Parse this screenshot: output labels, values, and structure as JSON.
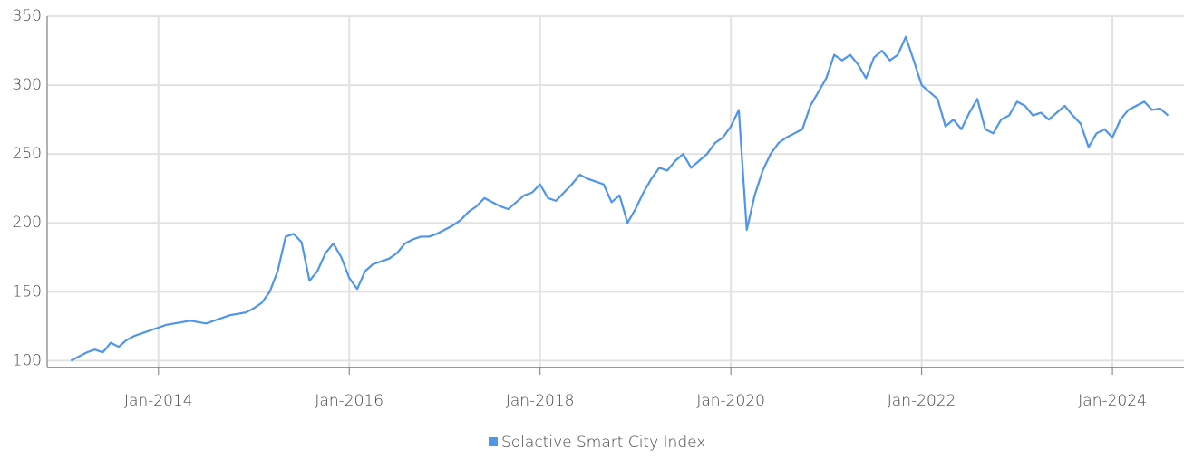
{
  "chart_data": {
    "type": "line",
    "x": [
      "2013-02",
      "2013-03",
      "2013-04",
      "2013-05",
      "2013-06",
      "2013-07",
      "2013-08",
      "2013-09",
      "2013-10",
      "2013-11",
      "2013-12",
      "2014-01",
      "2014-02",
      "2014-03",
      "2014-04",
      "2014-05",
      "2014-06",
      "2014-07",
      "2014-08",
      "2014-09",
      "2014-10",
      "2014-11",
      "2014-12",
      "2015-01",
      "2015-02",
      "2015-03",
      "2015-04",
      "2015-05",
      "2015-06",
      "2015-07",
      "2015-08",
      "2015-09",
      "2015-10",
      "2015-11",
      "2015-12",
      "2016-01",
      "2016-02",
      "2016-03",
      "2016-04",
      "2016-05",
      "2016-06",
      "2016-07",
      "2016-08",
      "2016-09",
      "2016-10",
      "2016-11",
      "2016-12",
      "2017-01",
      "2017-02",
      "2017-03",
      "2017-04",
      "2017-05",
      "2017-06",
      "2017-07",
      "2017-08",
      "2017-09",
      "2017-10",
      "2017-11",
      "2017-12",
      "2018-01",
      "2018-02",
      "2018-03",
      "2018-04",
      "2018-05",
      "2018-06",
      "2018-07",
      "2018-08",
      "2018-09",
      "2018-10",
      "2018-11",
      "2018-12",
      "2019-01",
      "2019-02",
      "2019-03",
      "2019-04",
      "2019-05",
      "2019-06",
      "2019-07",
      "2019-08",
      "2019-09",
      "2019-10",
      "2019-11",
      "2019-12",
      "2020-01",
      "2020-02",
      "2020-03",
      "2020-04",
      "2020-05",
      "2020-06",
      "2020-07",
      "2020-08",
      "2020-09",
      "2020-10",
      "2020-11",
      "2020-12",
      "2021-01",
      "2021-02",
      "2021-03",
      "2021-04",
      "2021-05",
      "2021-06",
      "2021-07",
      "2021-08",
      "2021-09",
      "2021-10",
      "2021-11",
      "2021-12",
      "2022-01",
      "2022-02",
      "2022-03",
      "2022-04",
      "2022-05",
      "2022-06",
      "2022-07",
      "2022-08",
      "2022-09",
      "2022-10",
      "2022-11",
      "2022-12",
      "2023-01",
      "2023-02",
      "2023-03",
      "2023-04",
      "2023-05",
      "2023-06",
      "2023-07",
      "2023-08",
      "2023-09",
      "2023-10",
      "2023-11",
      "2023-12",
      "2024-01",
      "2024-02",
      "2024-03",
      "2024-04",
      "2024-05",
      "2024-06",
      "2024-07",
      "2024-08"
    ],
    "series": [
      {
        "name": "Solactive Smart City Index",
        "color": "#4f95ec",
        "values": [
          100,
          103,
          106,
          108,
          106,
          113,
          110,
          115,
          118,
          120,
          122,
          124,
          126,
          127,
          128,
          129,
          128,
          127,
          129,
          131,
          133,
          134,
          135,
          138,
          142,
          150,
          165,
          190,
          192,
          186,
          158,
          165,
          178,
          185,
          175,
          160,
          152,
          165,
          170,
          172,
          174,
          178,
          185,
          188,
          190,
          190,
          192,
          195,
          198,
          202,
          208,
          212,
          218,
          215,
          212,
          210,
          215,
          220,
          222,
          228,
          218,
          216,
          222,
          228,
          235,
          232,
          230,
          228,
          215,
          220,
          200,
          210,
          222,
          232,
          240,
          238,
          245,
          250,
          240,
          245,
          250,
          258,
          262,
          270,
          282,
          195,
          220,
          238,
          250,
          258,
          262,
          265,
          268,
          285,
          295,
          305,
          322,
          318,
          322,
          315,
          305,
          320,
          325,
          318,
          322,
          335,
          318,
          300,
          295,
          290,
          270,
          275,
          268,
          280,
          290,
          268,
          265,
          275,
          278,
          288,
          285,
          278,
          280,
          275,
          280,
          285,
          278,
          272,
          255,
          265,
          268,
          262,
          275,
          282,
          285,
          288,
          282,
          283,
          278
        ]
      }
    ],
    "xlim": [
      "2012-11",
      "2024-10"
    ],
    "xticks": [
      {
        "value": "2014-01",
        "label": "Jan-2014"
      },
      {
        "value": "2016-01",
        "label": "Jan-2016"
      },
      {
        "value": "2018-01",
        "label": "Jan-2018"
      },
      {
        "value": "2020-01",
        "label": "Jan-2020"
      },
      {
        "value": "2022-01",
        "label": "Jan-2022"
      },
      {
        "value": "2024-01",
        "label": "Jan-2024"
      }
    ],
    "ylim": [
      95,
      350
    ],
    "yticks": [
      100,
      150,
      200,
      250,
      300,
      350
    ],
    "grid": true,
    "legend": "bottom"
  }
}
